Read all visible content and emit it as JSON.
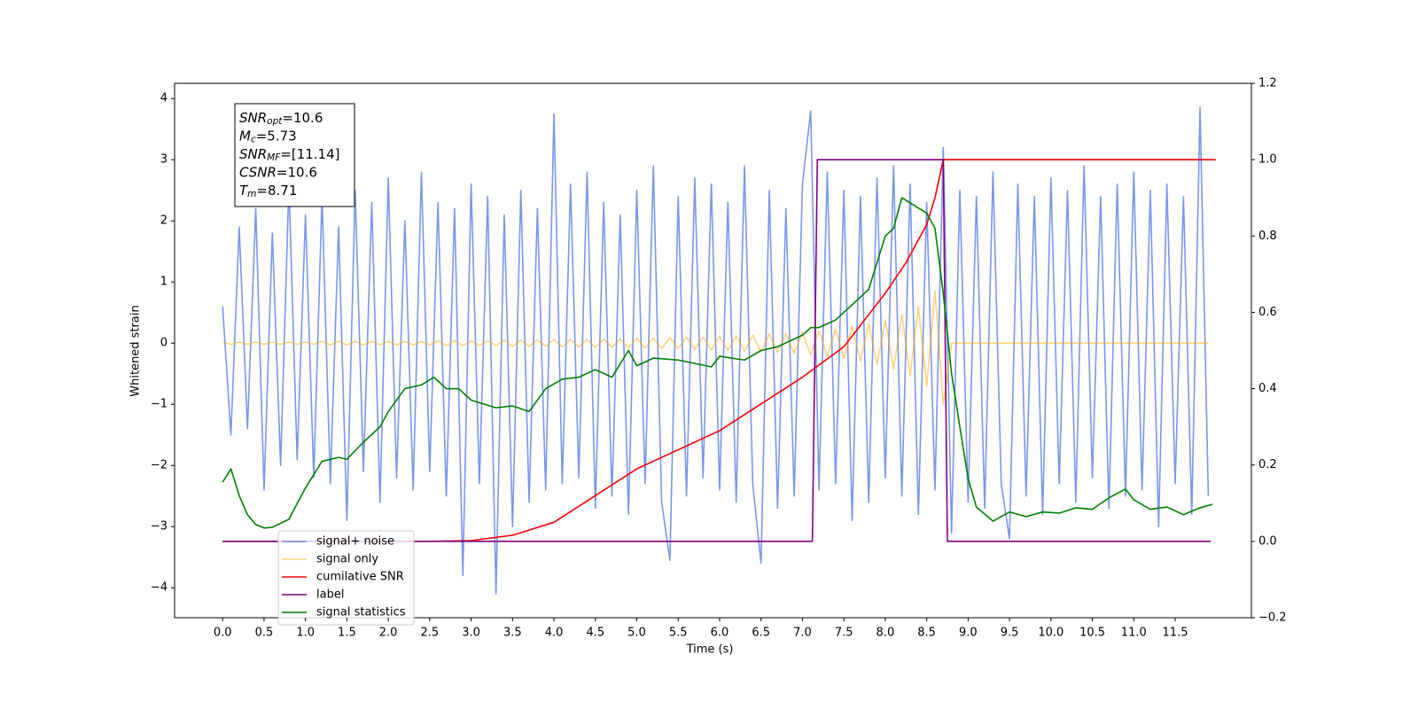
{
  "chart_data": {
    "type": "line",
    "xlabel": "Time (s)",
    "ylabel": "Whitened strain",
    "xlim": [
      -0.58,
      12.42
    ],
    "ylim": [
      -4.49,
      4.25
    ],
    "y2lim": [
      -0.2,
      1.2
    ],
    "xticks": [
      {
        "value": 0,
        "label": "0.0"
      },
      0.5,
      {
        "value": 1,
        "label": "1.0"
      },
      1.5,
      {
        "value": 2,
        "label": "2.0"
      },
      2.5,
      {
        "value": 3,
        "label": "3.0"
      },
      3.5,
      {
        "value": 4,
        "label": "4.0"
      },
      4.5,
      {
        "value": 5,
        "label": "5.0"
      },
      5.5,
      {
        "value": 6,
        "label": "6.0"
      },
      6.5,
      {
        "value": 7,
        "label": "7.0"
      },
      7.5,
      {
        "value": 8,
        "label": "8.0"
      },
      8.5,
      {
        "value": 9,
        "label": "9.0"
      },
      9.5,
      {
        "value": 10,
        "label": "10.0"
      },
      10.5,
      {
        "value": 11,
        "label": "11.0"
      },
      11.5
    ],
    "yticks": [
      {
        "value": -4,
        "label": "−4"
      },
      {
        "value": -3,
        "label": "−3"
      },
      {
        "value": -2,
        "label": "−2"
      },
      {
        "value": -1,
        "label": "−1"
      },
      0,
      1,
      2,
      3,
      4
    ],
    "y2ticks": [
      {
        "value": -0.2,
        "label": "−0.2"
      },
      {
        "value": 0,
        "label": "0.0"
      },
      0.2,
      0.4,
      0.6,
      0.8,
      {
        "value": 1,
        "label": "1.0"
      },
      1.2
    ],
    "annotations": [
      {
        "main": "SNR",
        "sub": "opt",
        "rest": "=10.6"
      },
      {
        "main": "M",
        "sub": "c",
        "rest": "=5.73"
      },
      {
        "main": "SNR",
        "sub": "MF",
        "rest": "=[11.14]"
      },
      {
        "main": "CSNR",
        "rest": "=10.6"
      },
      {
        "main": "T",
        "sub": "m",
        "rest": "=8.71"
      }
    ],
    "x": [
      0,
      0.1,
      0.2,
      0.3,
      0.4,
      0.5,
      0.6,
      0.7,
      0.8,
      0.9,
      1,
      1.1,
      1.2,
      1.3,
      1.4,
      1.5,
      1.6,
      1.7,
      1.8,
      1.9,
      2,
      2.1,
      2.2,
      2.3,
      2.4,
      2.5,
      2.6,
      2.7,
      2.8,
      2.9,
      3,
      3.1,
      3.2,
      3.3,
      3.4,
      3.5,
      3.6,
      3.7,
      3.8,
      3.9,
      4,
      4.1,
      4.2,
      4.3,
      4.4,
      4.5,
      4.6,
      4.7,
      4.8,
      4.9,
      5,
      5.1,
      5.2,
      5.3,
      5.4,
      5.5,
      5.6,
      5.7,
      5.8,
      5.9,
      6,
      6.1,
      6.2,
      6.3,
      6.4,
      6.5,
      6.6,
      6.7,
      6.8,
      6.9,
      7,
      7.1,
      7.2,
      7.3,
      7.4,
      7.5,
      7.6,
      7.7,
      7.8,
      7.9,
      8,
      8.1,
      8.2,
      8.3,
      8.4,
      8.5,
      8.6,
      8.7,
      8.8,
      8.9,
      9,
      9.1,
      9.2,
      9.3,
      9.4,
      9.5,
      9.6,
      9.7,
      9.8,
      9.9,
      10,
      10.1,
      10.2,
      10.3,
      10.4,
      10.5,
      10.6,
      10.7,
      10.8,
      10.9,
      11,
      11.1,
      11.2,
      11.3,
      11.4,
      11.5,
      11.6,
      11.7,
      11.8,
      11.9
    ],
    "series": [
      {
        "name": "signal+ noise",
        "color": "royalblue",
        "alpha": 0.7,
        "values": [
          0.6,
          -1.5,
          1.9,
          -1.4,
          2.2,
          -2.4,
          1.8,
          -2.0,
          2.6,
          -1.9,
          2.1,
          -2.2,
          2.4,
          -2.3,
          1.9,
          -2.9,
          2.5,
          -2.1,
          2.3,
          -2.6,
          2.7,
          -2.2,
          2.0,
          -2.4,
          2.8,
          -2.1,
          2.3,
          -2.5,
          2.2,
          -3.8,
          2.6,
          -2.3,
          2.4,
          -4.1,
          2.1,
          -3.0,
          2.5,
          -2.6,
          2.2,
          -2.4,
          3.75,
          -2.3,
          2.6,
          -2.2,
          2.8,
          -2.7,
          2.3,
          -2.5,
          2.1,
          -2.8,
          2.5,
          -2.3,
          2.9,
          -2.6,
          -3.55,
          2.4,
          -2.5,
          2.7,
          -2.2,
          2.6,
          -2.4,
          2.3,
          -2.6,
          2.9,
          -2.3,
          -3.6,
          2.5,
          -2.7,
          2.2,
          -2.5,
          2.6,
          3.8,
          -2.4,
          2.8,
          -2.3,
          2.5,
          -2.9,
          2.4,
          -2.6,
          2.7,
          -2.2,
          2.9,
          -2.5,
          2.6,
          -2.8,
          2.3,
          -2.4,
          3.2,
          -3.1,
          2.5,
          -2.6,
          2.4,
          -2.7,
          2.8,
          -2.3,
          -3.2,
          2.6,
          -2.5,
          2.4,
          -2.8,
          2.7,
          -2.3,
          2.5,
          -2.6,
          2.9,
          -2.2,
          2.4,
          -2.7,
          2.6,
          -2.5,
          2.8,
          -2.4,
          2.5,
          -3.0,
          2.6,
          -2.3,
          2.4,
          -2.8,
          3.85,
          -2.5
        ]
      },
      {
        "name": "signal only",
        "color": "orange",
        "alpha": 0.5,
        "values": [
          0.02,
          -0.02,
          0.02,
          -0.02,
          0.02,
          -0.02,
          0.02,
          -0.02,
          0.02,
          -0.02,
          0.02,
          -0.02,
          0.03,
          -0.03,
          0.03,
          -0.03,
          0.03,
          -0.03,
          0.03,
          -0.03,
          0.03,
          -0.03,
          0.03,
          -0.03,
          0.03,
          -0.03,
          0.04,
          -0.04,
          0.04,
          -0.04,
          0.04,
          -0.04,
          0.04,
          -0.04,
          0.05,
          -0.05,
          0.05,
          -0.05,
          0.05,
          -0.05,
          0.06,
          -0.06,
          0.06,
          -0.06,
          0.06,
          -0.07,
          0.07,
          -0.07,
          0.07,
          -0.08,
          0.08,
          -0.08,
          0.08,
          -0.09,
          0.09,
          -0.09,
          0.1,
          -0.1,
          0.1,
          -0.11,
          0.11,
          -0.12,
          0.12,
          -0.13,
          0.13,
          -0.14,
          0.15,
          -0.15,
          0.16,
          -0.17,
          0.18,
          -0.19,
          0.2,
          -0.21,
          0.23,
          -0.25,
          0.27,
          -0.29,
          0.32,
          -0.35,
          0.38,
          -0.42,
          0.47,
          -0.53,
          0.6,
          -0.7,
          0.85,
          -1.0,
          0,
          0,
          0,
          0,
          0,
          0,
          0,
          0,
          0,
          0,
          0,
          0,
          0,
          0,
          0,
          0,
          0,
          0,
          0,
          0,
          0,
          0,
          0,
          0,
          0,
          0,
          0,
          0,
          0,
          0,
          0,
          0
        ]
      },
      {
        "name": "cumilative SNR",
        "color": "red",
        "axis": "y2",
        "x": [
          0,
          2.5,
          3,
          3.5,
          4,
          4.5,
          5,
          5.5,
          6,
          6.5,
          7,
          7.5,
          8,
          8.25,
          8.5,
          8.6,
          8.7,
          11.99
        ],
        "values": [
          0,
          0,
          0.002,
          0.016,
          0.05,
          0.12,
          0.19,
          0.24,
          0.29,
          0.36,
          0.43,
          0.51,
          0.65,
          0.73,
          0.83,
          0.9,
          1.0,
          1.0
        ]
      },
      {
        "name": "label",
        "color": "purple",
        "axis": "y2",
        "x": [
          0,
          7.12,
          7.18,
          8.7,
          8.75,
          11.93
        ],
        "values": [
          0,
          0,
          1,
          1,
          0,
          0
        ]
      },
      {
        "name": "signal statistics",
        "color": "green",
        "axis": "y2",
        "x": [
          0,
          0.1,
          0.2,
          0.3,
          0.4,
          0.5,
          0.6,
          0.8,
          1.0,
          1.2,
          1.4,
          1.5,
          1.7,
          1.9,
          2.0,
          2.2,
          2.4,
          2.55,
          2.7,
          2.85,
          3.0,
          3.3,
          3.5,
          3.7,
          3.9,
          4.1,
          4.3,
          4.5,
          4.7,
          4.9,
          5.0,
          5.2,
          5.5,
          5.7,
          5.9,
          6.0,
          6.3,
          6.5,
          6.7,
          7.0,
          7.1,
          7.2,
          7.4,
          7.6,
          7.8,
          8.0,
          8.1,
          8.2,
          8.35,
          8.5,
          8.6,
          8.7,
          8.8,
          8.9,
          9.0,
          9.1,
          9.3,
          9.5,
          9.7,
          9.9,
          10.1,
          10.3,
          10.5,
          10.7,
          10.9,
          11.0,
          11.2,
          11.4,
          11.6,
          11.8,
          11.95
        ],
        "values": [
          0.155,
          0.19,
          0.12,
          0.07,
          0.044,
          0.035,
          0.037,
          0.058,
          0.14,
          0.21,
          0.22,
          0.215,
          0.26,
          0.3,
          0.34,
          0.4,
          0.41,
          0.43,
          0.4,
          0.4,
          0.37,
          0.35,
          0.355,
          0.34,
          0.4,
          0.425,
          0.43,
          0.45,
          0.43,
          0.5,
          0.46,
          0.48,
          0.475,
          0.466,
          0.457,
          0.485,
          0.475,
          0.5,
          0.51,
          0.54,
          0.56,
          0.56,
          0.58,
          0.62,
          0.66,
          0.8,
          0.82,
          0.9,
          0.88,
          0.86,
          0.82,
          0.65,
          0.44,
          0.3,
          0.165,
          0.09,
          0.053,
          0.077,
          0.065,
          0.077,
          0.074,
          0.088,
          0.084,
          0.114,
          0.137,
          0.109,
          0.084,
          0.09,
          0.07,
          0.088,
          0.097
        ]
      }
    ]
  }
}
